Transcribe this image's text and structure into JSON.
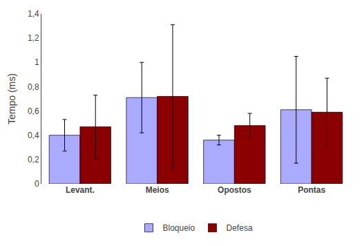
{
  "chart_data": {
    "type": "bar",
    "categories": [
      "Levant.",
      "Meios",
      "Opostos",
      "Pontas"
    ],
    "series": [
      {
        "name": "Bloqueio",
        "color": "#aaaaff",
        "values": [
          0.4,
          0.71,
          0.36,
          0.61
        ],
        "errors": [
          0.13,
          0.29,
          0.04,
          0.44
        ]
      },
      {
        "name": "Defesa",
        "color": "#8b0000",
        "values": [
          0.47,
          0.72,
          0.48,
          0.59
        ],
        "errors": [
          0.26,
          0.59,
          0.1,
          0.28
        ]
      }
    ],
    "ylabel": "Tempo (ms)",
    "ylim": [
      0,
      1.4
    ],
    "yticks": [
      0,
      {
        "value": 0.2,
        "label": "0,2"
      },
      {
        "value": 0.4,
        "label": "0,4"
      },
      {
        "value": 0.6,
        "label": "0,6"
      },
      {
        "value": 0.8,
        "label": "0,8"
      },
      1,
      {
        "value": 1.2,
        "label": "1,2"
      },
      {
        "value": 1.4,
        "label": "1,4"
      }
    ],
    "grid": false,
    "legend": "lower center"
  }
}
